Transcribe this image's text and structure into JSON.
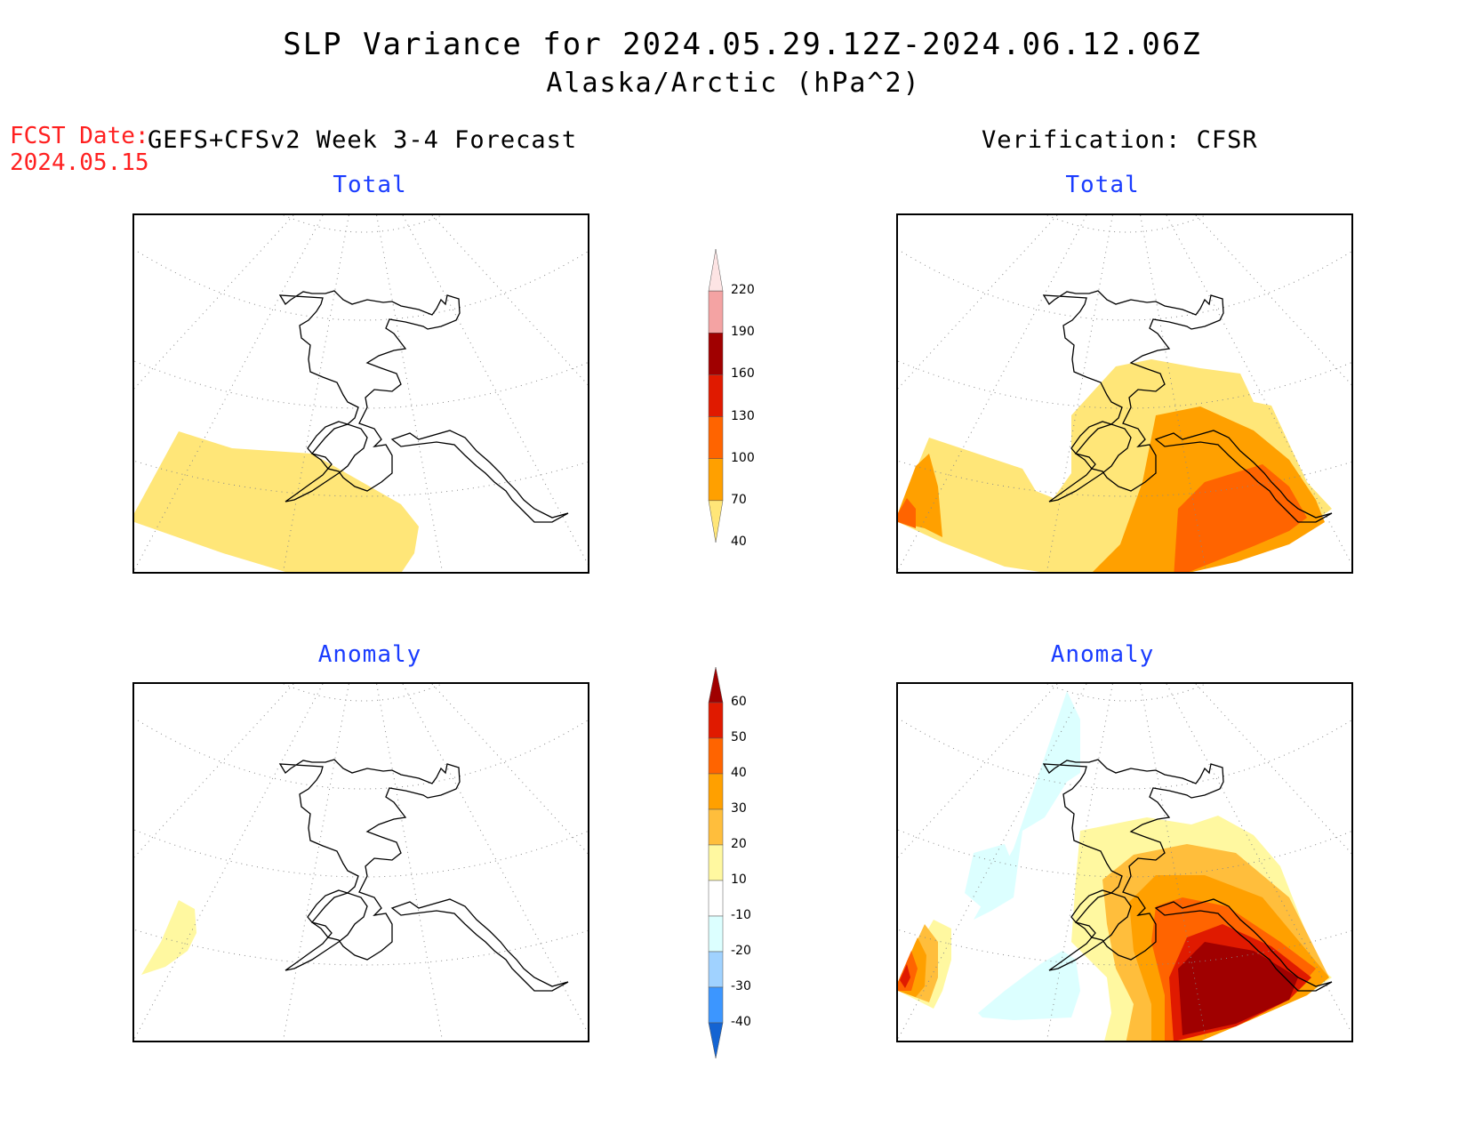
{
  "title": {
    "line1": "SLP Variance for 2024.05.29.12Z-2024.06.12.06Z",
    "line2": "Alaska/Arctic (hPa^2)"
  },
  "forecast_date": {
    "label": "FCST Date:",
    "value": "2024.05.15"
  },
  "left_header": "GEFS+CFSv2 Week 3-4 Forecast",
  "right_header": "Verification: CFSR",
  "panels": {
    "fcst_total_title": "Total",
    "fcst_anom_title": "Anomaly",
    "ver_total_title": "Total",
    "ver_anom_title": "Anomaly"
  },
  "colorbar_total": {
    "levels": [
      "220",
      "190",
      "160",
      "130",
      "100",
      "70",
      "40"
    ],
    "colors": [
      "#fde4e4",
      "#f4a3a3",
      "#a00000",
      "#e01a00",
      "#ff6400",
      "#ffa000",
      "#ffe678"
    ]
  },
  "colorbar_anomaly": {
    "levels": [
      "60",
      "50",
      "40",
      "30",
      "20",
      "10",
      "-10",
      "-20",
      "-30",
      "-40"
    ],
    "colors": [
      "#a00000",
      "#e01a00",
      "#ff6400",
      "#ffa000",
      "#ffbe3c",
      "#fff8a0",
      "#ffffff",
      "#dcffff",
      "#a0d2ff",
      "#3c96ff",
      "#1464d2"
    ]
  }
}
